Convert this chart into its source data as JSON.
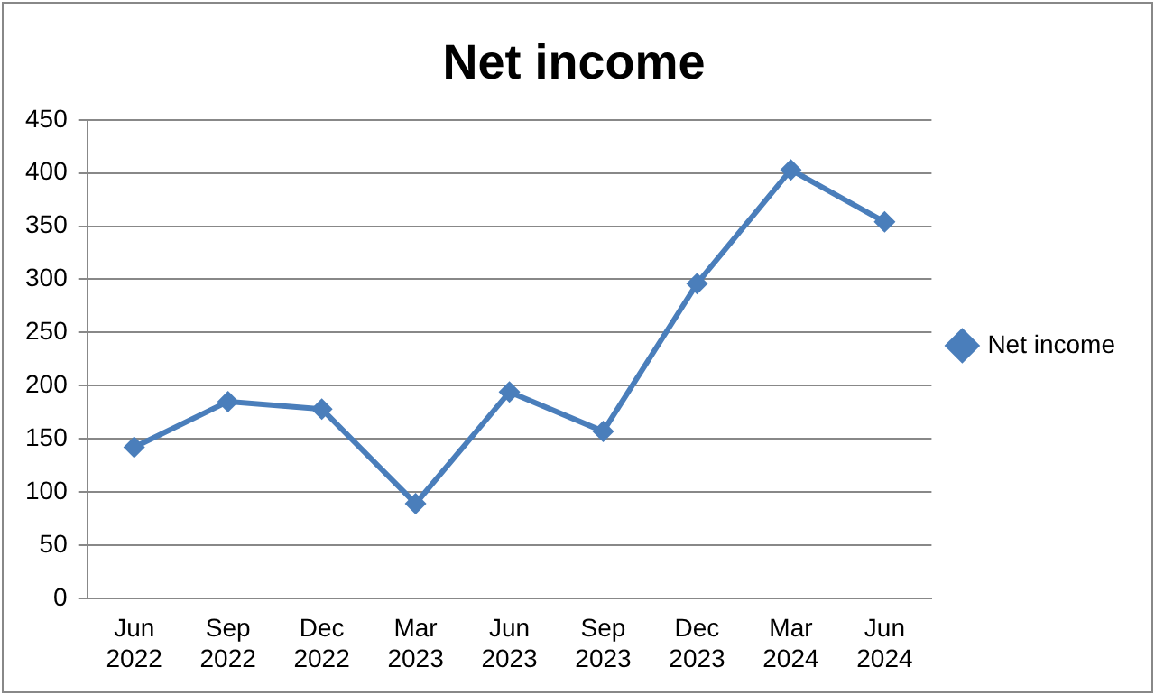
{
  "chart_data": {
    "type": "line",
    "title": "Net income",
    "categories": [
      "Jun 2022",
      "Sep 2022",
      "Dec 2022",
      "Mar 2023",
      "Jun 2023",
      "Sep 2023",
      "Dec 2023",
      "Mar 2024",
      "Jun 2024"
    ],
    "series": [
      {
        "name": "Net income",
        "color": "#4a7ebb",
        "values": [
          142,
          185,
          178,
          89,
          194,
          157,
          296,
          403,
          354
        ]
      }
    ],
    "ylim": [
      0,
      450
    ],
    "yticks": [
      0,
      50,
      100,
      150,
      200,
      250,
      300,
      350,
      400,
      450
    ],
    "grid": "y",
    "legend": "right",
    "marker": "diamond",
    "line_style": "solid"
  }
}
